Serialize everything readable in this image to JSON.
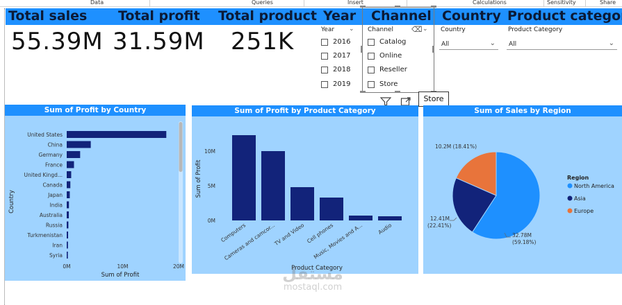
{
  "ribbon": {
    "items": [
      "Data",
      "Queries",
      "Insert",
      "Calculations",
      "Sensitivity",
      "Share"
    ]
  },
  "headers": {
    "total_sales": "Total sales",
    "total_profit": "Total profit",
    "total_product": "Total product",
    "year": "Year",
    "channel": "Channel",
    "country": "Country",
    "product_category": "Product category"
  },
  "kpis": {
    "total_sales": "55.39M",
    "total_profit": "31.59M",
    "total_product": "251K"
  },
  "year_slicer": {
    "label": "Year",
    "options": [
      "2016",
      "2017",
      "2018",
      "2019"
    ]
  },
  "channel_slicer": {
    "label": "Channel",
    "options": [
      "Catalog",
      "Online",
      "Reseller",
      "Store"
    ]
  },
  "country_slicer": {
    "label": "Country",
    "value": "All"
  },
  "category_slicer": {
    "label": "Product Category",
    "value": "All"
  },
  "tooltip": {
    "text": "Store"
  },
  "colors": {
    "header_bar": "#1e90ff",
    "panel_bg": "#9fd3ff",
    "bar_navy": "#12237a",
    "north_america": "#1e90ff",
    "asia": "#12237a",
    "europe": "#e8743b"
  },
  "chart_data": [
    {
      "type": "bar",
      "orientation": "horizontal",
      "title": "Sum of Profit by Country",
      "xlabel": "Sum of Profit",
      "ylabel": "Country",
      "categories": [
        "United States",
        "China",
        "Germany",
        "France",
        "United Kingd...",
        "Canada",
        "Japan",
        "India",
        "Australia",
        "Russia",
        "Turkmenistan",
        "Iran",
        "Syria"
      ],
      "values": [
        17800000,
        4300000,
        2400000,
        1300000,
        800000,
        650000,
        550000,
        400000,
        380000,
        300000,
        250000,
        220000,
        200000
      ],
      "xticks": [
        "0M",
        "10M",
        "20M"
      ],
      "xlim": [
        0,
        20000000
      ]
    },
    {
      "type": "bar",
      "title": "Sum of Profit by Product Category",
      "xlabel": "Product Category",
      "ylabel": "Sum of Profit",
      "categories": [
        "Computers",
        "Cameras and camcor...",
        "TV and Video",
        "Cell phones",
        "Music, Movies and A...",
        "Audio"
      ],
      "values": [
        12300000,
        10000000,
        4800000,
        3300000,
        700000,
        600000
      ],
      "yticks": [
        "0M",
        "5M",
        "10M"
      ],
      "ylim": [
        0,
        13500000
      ]
    },
    {
      "type": "pie",
      "title": "Sum of Sales by Region",
      "legend_title": "Region",
      "legend_position": "right",
      "series": [
        {
          "name": "North America",
          "value": 32.78,
          "label": "32.78M",
          "percent": "(59.18%)"
        },
        {
          "name": "Asia",
          "value": 12.41,
          "label": "12.41M",
          "percent": "(22.41%)"
        },
        {
          "name": "Europe",
          "value": 10.2,
          "label": "10.2M (18.41%)",
          "percent": ""
        }
      ]
    }
  ],
  "watermark": {
    "arabic": "مستقل",
    "latin": "mostaql.com"
  }
}
